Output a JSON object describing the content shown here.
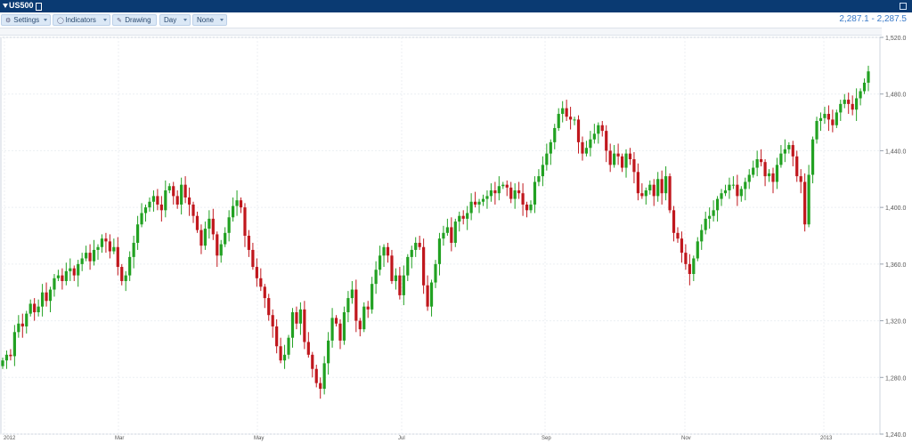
{
  "window": {
    "title": "US500"
  },
  "toolbar": {
    "settings_label": "Settings",
    "indicators_label": "Indicators",
    "drawing_label": "Drawing",
    "period_label": "Day",
    "overlay_label": "None"
  },
  "quote": {
    "text": "2,287.1 - 2,287.5"
  },
  "icons": {
    "settings": "gear-icon",
    "indicators": "bulb-icon",
    "drawing": "pencil-icon",
    "popout": "popout-icon"
  },
  "colors": {
    "up": "#22a122",
    "down": "#c0171d",
    "header": "#0a3a72",
    "accent": "#3a7ac8"
  },
  "chart_data": {
    "type": "candlestick",
    "x_ticks": [
      "2012",
      "Mar",
      "May",
      "Jul",
      "Sep",
      "Nov",
      "2013"
    ],
    "y_ticks": [
      "1,520.0",
      "1,480.0",
      "1,440.0",
      "1,400.0",
      "1,360.0",
      "1,320.0",
      "1,280.0",
      "1,240.0"
    ],
    "ylim": [
      1240,
      1520
    ],
    "grid": true,
    "closes": [
      1292,
      1296,
      1295,
      1312,
      1318,
      1316,
      1325,
      1332,
      1326,
      1330,
      1340,
      1334,
      1342,
      1350,
      1352,
      1348,
      1355,
      1357,
      1352,
      1360,
      1364,
      1368,
      1362,
      1370,
      1372,
      1378,
      1376,
      1369,
      1372,
      1358,
      1348,
      1352,
      1365,
      1375,
      1388,
      1396,
      1400,
      1404,
      1408,
      1402,
      1398,
      1412,
      1415,
      1408,
      1402,
      1416,
      1407,
      1402,
      1394,
      1384,
      1373,
      1385,
      1392,
      1381,
      1366,
      1374,
      1382,
      1393,
      1401,
      1405,
      1400,
      1380,
      1370,
      1358,
      1350,
      1344,
      1336,
      1324,
      1316,
      1302,
      1292,
      1296,
      1308,
      1326,
      1318,
      1328,
      1305,
      1296,
      1286,
      1276,
      1272,
      1290,
      1306,
      1322,
      1318,
      1306,
      1326,
      1336,
      1342,
      1320,
      1314,
      1330,
      1328,
      1346,
      1356,
      1366,
      1372,
      1366,
      1348,
      1352,
      1338,
      1352,
      1365,
      1370,
      1375,
      1372,
      1345,
      1330,
      1347,
      1360,
      1378,
      1382,
      1386,
      1375,
      1390,
      1394,
      1392,
      1396,
      1404,
      1402,
      1404,
      1406,
      1408,
      1412,
      1410,
      1415,
      1416,
      1414,
      1406,
      1412,
      1410,
      1402,
      1398,
      1402,
      1418,
      1422,
      1430,
      1438,
      1446,
      1456,
      1466,
      1470,
      1464,
      1462,
      1462,
      1446,
      1438,
      1442,
      1448,
      1452,
      1458,
      1454,
      1440,
      1430,
      1438,
      1436,
      1428,
      1438,
      1434,
      1425,
      1410,
      1408,
      1412,
      1416,
      1408,
      1420,
      1410,
      1422,
      1398,
      1382,
      1378,
      1368,
      1360,
      1353,
      1364,
      1376,
      1384,
      1392,
      1394,
      1398,
      1406,
      1410,
      1412,
      1416,
      1416,
      1408,
      1413,
      1418,
      1423,
      1428,
      1434,
      1432,
      1422,
      1424,
      1418,
      1430,
      1438,
      1441,
      1444,
      1436,
      1422,
      1418,
      1388,
      1423,
      1448,
      1461,
      1463,
      1466,
      1462,
      1458,
      1467,
      1473,
      1476,
      1473,
      1469,
      1477,
      1482,
      1488,
      1496
    ]
  }
}
